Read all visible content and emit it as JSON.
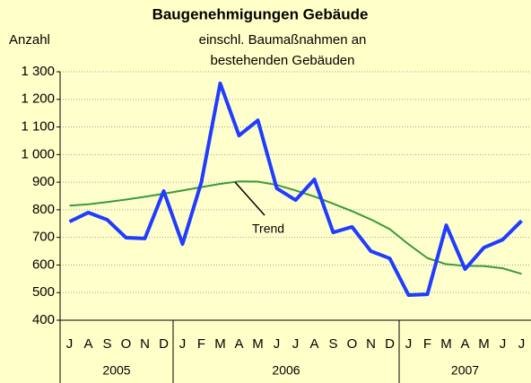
{
  "chart_data": {
    "type": "line",
    "title": "Baugenehmigungen Gebäude",
    "subtitle": [
      "einschl. Baumaßnahmen an",
      "bestehenden Gebäuden"
    ],
    "y_label": "Anzahl",
    "categories": [
      "J",
      "A",
      "S",
      "O",
      "N",
      "D",
      "J",
      "F",
      "M",
      "A",
      "M",
      "J",
      "J",
      "A",
      "S",
      "O",
      "N",
      "D",
      "J",
      "F",
      "M",
      "A",
      "M",
      "J",
      "J"
    ],
    "groups": [
      {
        "label": "2005",
        "count": 6
      },
      {
        "label": "2006",
        "count": 12
      },
      {
        "label": "2007",
        "count": 7
      }
    ],
    "series": [
      {
        "name": "Baugenehmigungen",
        "color": "#1f3cff",
        "values": [
          757,
          790,
          764,
          699,
          696,
          868,
          676,
          900,
          1258,
          1069,
          1124,
          878,
          835,
          910,
          718,
          738,
          650,
          624,
          491,
          494,
          744,
          585,
          663,
          692,
          760
        ]
      },
      {
        "name": "Trend",
        "color": "#3a9a3a",
        "values": [
          815,
          820,
          828,
          837,
          847,
          858,
          870,
          882,
          894,
          903,
          902,
          890,
          870,
          848,
          822,
          795,
          765,
          730,
          675,
          625,
          603,
          597,
          596,
          588,
          568
        ]
      }
    ],
    "annotation": "Trend",
    "ylim": [
      400,
      1300
    ],
    "yticks": [
      400,
      500,
      600,
      700,
      800,
      900,
      {
        "value": 1000,
        "label": "1 000"
      },
      {
        "value": 1100,
        "label": "1 100"
      },
      {
        "value": 1200,
        "label": "1 200"
      },
      {
        "value": 1300,
        "label": "1 300"
      }
    ],
    "grid": true
  }
}
